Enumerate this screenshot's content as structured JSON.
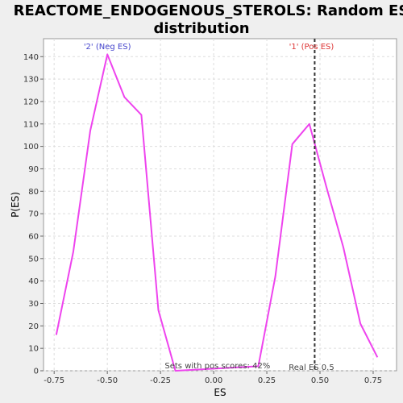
{
  "chart_data": {
    "type": "line",
    "title_lines": [
      "REACTOME_ENDOGENOUS_STEROLS: Random ES",
      "distribution"
    ],
    "xlabel": "ES",
    "ylabel": "P(ES)",
    "xlim": [
      -0.8,
      0.86
    ],
    "ylim": [
      0,
      148
    ],
    "x_ticks": [
      -0.75,
      -0.5,
      -0.25,
      0.0,
      0.25,
      0.5,
      0.75
    ],
    "x_tick_labels": [
      "-0.75",
      "-0.50",
      "-0.25",
      "0.00",
      "0.25",
      "0.50",
      "0.75"
    ],
    "y_ticks": [
      0,
      10,
      20,
      30,
      40,
      50,
      60,
      70,
      80,
      90,
      100,
      110,
      120,
      130,
      140
    ],
    "y_tick_labels": [
      "0",
      "10",
      "20",
      "30",
      "40",
      "50",
      "60",
      "70",
      "80",
      "90",
      "100",
      "110",
      "120",
      "130",
      "140"
    ],
    "grid": true,
    "line_color": "#ee44ee",
    "series": [
      {
        "x": [
          -0.74,
          -0.66,
          -0.58,
          -0.5,
          -0.42,
          -0.34,
          -0.26,
          -0.18,
          0.21,
          0.29,
          0.37,
          0.45,
          0.53,
          0.61,
          0.69,
          0.77
        ],
        "y": [
          16,
          53,
          107,
          141,
          122,
          114,
          27,
          0,
          2,
          42,
          101,
          110,
          82,
          55,
          21,
          6
        ]
      }
    ],
    "annotations": {
      "neg_label": "'2' (Neg ES)",
      "neg_label_x": -0.5,
      "neg_color": "#4444cc",
      "pos_label": "'1' (Pos ES)",
      "pos_label_x": 0.46,
      "pos_color": "#dd3333",
      "real_es_x": 0.475,
      "real_es_label": "Real ES 0.5",
      "real_es_label_x": 0.46,
      "pos_scores_text": "Sets with pos scores: 42%",
      "pos_scores_x": -0.23
    }
  }
}
